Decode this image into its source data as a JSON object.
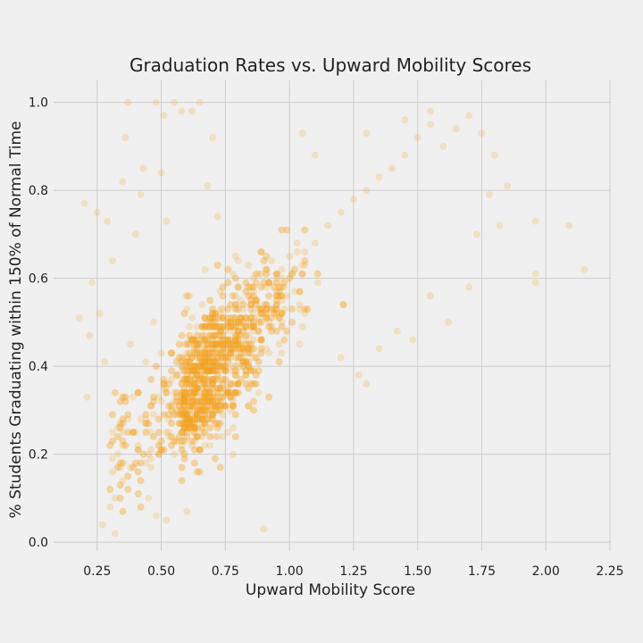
{
  "chart_data": {
    "type": "scatter",
    "title": "Graduation Rates vs. Upward Mobility Scores",
    "xlabel": "Upward Mobility Score",
    "ylabel": "% Students Graduating within 150% of Normal Time",
    "xlim": [
      0.08,
      2.25
    ],
    "ylim": [
      -0.02,
      1.05
    ],
    "xticks": [
      0.25,
      0.5,
      0.75,
      1.0,
      1.25,
      1.5,
      1.75,
      2.0,
      2.25
    ],
    "xtick_labels": [
      "0.25",
      "0.50",
      "0.75",
      "1.00",
      "1.25",
      "1.50",
      "1.75",
      "2.00",
      "2.25"
    ],
    "yticks": [
      0.0,
      0.2,
      0.4,
      0.6,
      0.8,
      1.0
    ],
    "ytick_labels": [
      "0.0",
      "0.2",
      "0.4",
      "0.6",
      "0.8",
      "1.0"
    ],
    "grid": true,
    "marker_color": "#f5a623",
    "marker_alpha": 0.22,
    "point_count": 1800,
    "points": [
      [
        0.18,
        0.51
      ],
      [
        0.2,
        0.77
      ],
      [
        0.21,
        0.33
      ],
      [
        0.22,
        0.47
      ],
      [
        0.23,
        0.59
      ],
      [
        0.25,
        0.75
      ],
      [
        0.26,
        0.52
      ],
      [
        0.27,
        0.04
      ],
      [
        0.28,
        0.41
      ],
      [
        0.29,
        0.73
      ],
      [
        0.3,
        0.08
      ],
      [
        0.31,
        0.64
      ],
      [
        0.32,
        0.02
      ],
      [
        0.33,
        0.26
      ],
      [
        0.34,
        0.18
      ],
      [
        0.35,
        0.82
      ],
      [
        0.36,
        0.92
      ],
      [
        0.37,
        1.0
      ],
      [
        0.38,
        0.45
      ],
      [
        0.4,
        0.7
      ],
      [
        0.42,
        0.79
      ],
      [
        0.43,
        0.85
      ],
      [
        0.45,
        0.2
      ],
      [
        0.47,
        0.5
      ],
      [
        0.48,
        1.0
      ],
      [
        0.5,
        0.84
      ],
      [
        0.51,
        0.97
      ],
      [
        0.52,
        0.73
      ],
      [
        0.55,
        1.0
      ],
      [
        0.58,
        0.98
      ],
      [
        0.62,
        0.98
      ],
      [
        0.65,
        1.0
      ],
      [
        0.68,
        0.81
      ],
      [
        0.7,
        0.92
      ],
      [
        0.72,
        0.74
      ],
      [
        0.9,
        0.03
      ],
      [
        0.45,
        0.1
      ],
      [
        0.48,
        0.06
      ],
      [
        0.52,
        0.05
      ],
      [
        0.6,
        0.07
      ],
      [
        0.55,
        0.2
      ],
      [
        0.58,
        0.22
      ],
      [
        0.62,
        0.25
      ],
      [
        0.65,
        0.3
      ],
      [
        0.7,
        0.35
      ],
      [
        0.75,
        0.4
      ],
      [
        0.8,
        0.45
      ],
      [
        0.85,
        0.5
      ],
      [
        0.9,
        0.52
      ],
      [
        0.95,
        0.55
      ],
      [
        1.0,
        0.6
      ],
      [
        1.05,
        0.63
      ],
      [
        1.1,
        0.68
      ],
      [
        1.15,
        0.72
      ],
      [
        1.2,
        0.75
      ],
      [
        1.25,
        0.78
      ],
      [
        1.3,
        0.8
      ],
      [
        1.35,
        0.83
      ],
      [
        1.4,
        0.85
      ],
      [
        1.45,
        0.88
      ],
      [
        1.5,
        0.92
      ],
      [
        1.55,
        0.95
      ],
      [
        1.6,
        0.9
      ],
      [
        1.65,
        0.94
      ],
      [
        1.7,
        0.97
      ],
      [
        1.75,
        0.93
      ],
      [
        1.8,
        0.88
      ],
      [
        1.85,
        0.81
      ],
      [
        1.78,
        0.79
      ],
      [
        1.82,
        0.72
      ],
      [
        1.73,
        0.7
      ],
      [
        1.7,
        0.58
      ],
      [
        1.62,
        0.5
      ],
      [
        1.55,
        0.56
      ],
      [
        1.48,
        0.46
      ],
      [
        1.42,
        0.48
      ],
      [
        1.35,
        0.44
      ],
      [
        1.3,
        0.36
      ],
      [
        1.27,
        0.38
      ],
      [
        1.2,
        0.42
      ],
      [
        1.96,
        0.73
      ],
      [
        1.96,
        0.61
      ],
      [
        1.96,
        0.59
      ],
      [
        2.09,
        0.72
      ],
      [
        2.15,
        0.62
      ],
      [
        1.55,
        0.98
      ],
      [
        1.45,
        0.96
      ],
      [
        1.3,
        0.93
      ],
      [
        1.1,
        0.88
      ],
      [
        1.05,
        0.93
      ]
    ]
  }
}
